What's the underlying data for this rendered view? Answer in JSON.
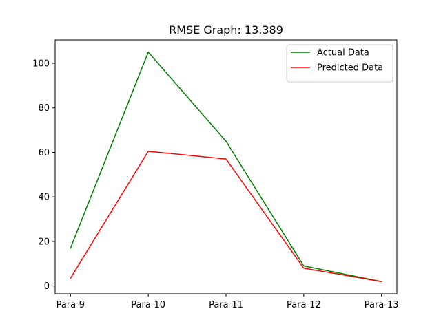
{
  "chart_data": {
    "type": "line",
    "title": "RMSE Graph: 13.389",
    "xlabel": "",
    "ylabel": "",
    "categories": [
      "Para-9",
      "Para-10",
      "Para-11",
      "Para-12",
      "Para-13"
    ],
    "series": [
      {
        "name": "Actual Data",
        "color": "#008000",
        "values": [
          17,
          105,
          65,
          9,
          2
        ]
      },
      {
        "name": "Predicted Data",
        "color": "#ff0000",
        "values": [
          3.5,
          60.5,
          57,
          8,
          2
        ]
      }
    ],
    "ylim": [
      -3.5,
      110.5
    ],
    "yticks": [
      0,
      20,
      40,
      60,
      80,
      100
    ],
    "grid": false,
    "legend_position": "top-right"
  }
}
